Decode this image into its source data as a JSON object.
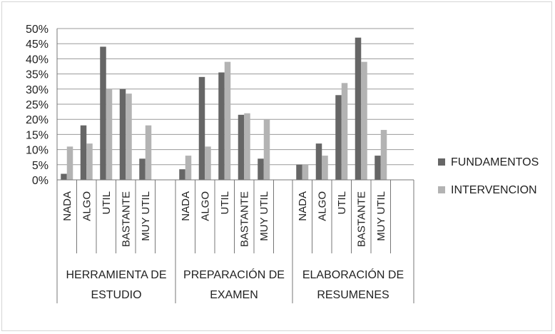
{
  "chart_data": {
    "type": "bar",
    "groups": [
      {
        "label_lines": [
          "HERRAMIENTA DE",
          "ESTUDIO"
        ],
        "categories": [
          "NADA",
          "ALGO",
          "UTIL",
          "BASTANTE",
          "MUY UTIL"
        ]
      },
      {
        "label_lines": [
          "PREPARACIÓN DE",
          "EXAMEN"
        ],
        "categories": [
          "NADA",
          "ALGO",
          "UTIL",
          "BASTANTE",
          "MUY UTIL"
        ]
      },
      {
        "label_lines": [
          "ELABORACIÓN DE",
          "RESUMENES"
        ],
        "categories": [
          "NADA",
          "ALGO",
          "UTIL",
          "BASTANTE",
          "MUY UTIL"
        ]
      }
    ],
    "series": [
      {
        "name": "FUNDAMENTOS",
        "color": "#666666",
        "values": [
          [
            2,
            18,
            44,
            30,
            7
          ],
          [
            3.5,
            34,
            35.5,
            21.5,
            7
          ],
          [
            5,
            12,
            28,
            47,
            8
          ]
        ]
      },
      {
        "name": "INTERVENCION",
        "color": "#b3b3b3",
        "values": [
          [
            11,
            12,
            30,
            28.5,
            18
          ],
          [
            8,
            11,
            39,
            22,
            20
          ],
          [
            5,
            8,
            32,
            39,
            16.5
          ]
        ]
      }
    ],
    "y_ticks": [
      "0%",
      "5%",
      "10%",
      "15%",
      "20%",
      "25%",
      "30%",
      "35%",
      "40%",
      "45%",
      "50%"
    ],
    "ylim": [
      0,
      50
    ],
    "grid": true,
    "legend_position": "right"
  }
}
